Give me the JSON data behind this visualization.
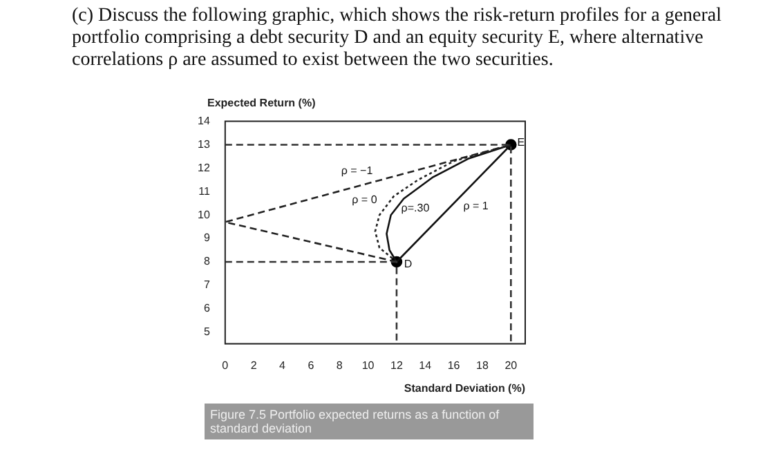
{
  "chart_data": {
    "type": "line",
    "title": "(c) Discuss the following graphic, which shows the risk-return profiles for a general portfolio comprising a debt security D and an equity security E, where alternative correlations ρ are assumed to exist between the two securities.",
    "xlabel": "Standard Deviation (%)",
    "ylabel": "Expected Return (%)",
    "xlim": [
      0,
      21
    ],
    "ylim": [
      4.5,
      14
    ],
    "xticks": [
      0,
      2,
      4,
      6,
      8,
      10,
      12,
      14,
      16,
      18,
      20
    ],
    "yticks": [
      5,
      6,
      7,
      8,
      9,
      10,
      11,
      12,
      13,
      14
    ],
    "grid": false,
    "legend": false,
    "marker": "none",
    "series": [
      {
        "type": "line",
        "color": "#333333",
        "line_style": "dashed",
        "x": [
          0,
          12,
          12
        ],
        "values": [
          8,
          8,
          4.5
        ]
      },
      {
        "type": "line",
        "color": "#333333",
        "line_style": "dashed",
        "x": [
          0,
          20,
          20
        ],
        "values": [
          13,
          13,
          4.5
        ]
      },
      {
        "type": "line",
        "name": "ρ = −1",
        "color": "#222222",
        "line_style": "dashed",
        "x": [
          12,
          0,
          20
        ],
        "values": [
          8,
          9.7,
          13
        ]
      },
      {
        "type": "line",
        "name": "ρ = 0",
        "color": "#222222",
        "line_style": "dotted",
        "x": [
          12,
          10.8,
          10.5,
          10.8,
          11.8,
          13.5,
          16,
          20
        ],
        "values": [
          8,
          8.6,
          9.3,
          10,
          10.8,
          11.5,
          12.3,
          13
        ]
      },
      {
        "type": "line",
        "name": "ρ=.30",
        "color": "#111111",
        "line_style": "solid",
        "x": [
          12,
          11.5,
          11.3,
          11.6,
          12.5,
          14.5,
          17,
          20
        ],
        "values": [
          8,
          8.5,
          9.2,
          10,
          10.7,
          11.6,
          12.4,
          13
        ]
      },
      {
        "type": "line",
        "name": "ρ = 1",
        "color": "#111111",
        "line_style": "solid",
        "x": [
          12,
          20
        ],
        "values": [
          8,
          13
        ]
      },
      {
        "type": "scatter",
        "color": "#000000",
        "marker": "circle",
        "x": [
          12,
          20
        ],
        "values": [
          8,
          13
        ]
      }
    ],
    "annotations": [
      {
        "text": "D",
        "x": 12.8,
        "y": 7.9
      },
      {
        "text": "E",
        "x": 20.7,
        "y": 13.1
      },
      "Figure 7.5 Portfolio expected returns as a function of standard deviation"
    ]
  }
}
